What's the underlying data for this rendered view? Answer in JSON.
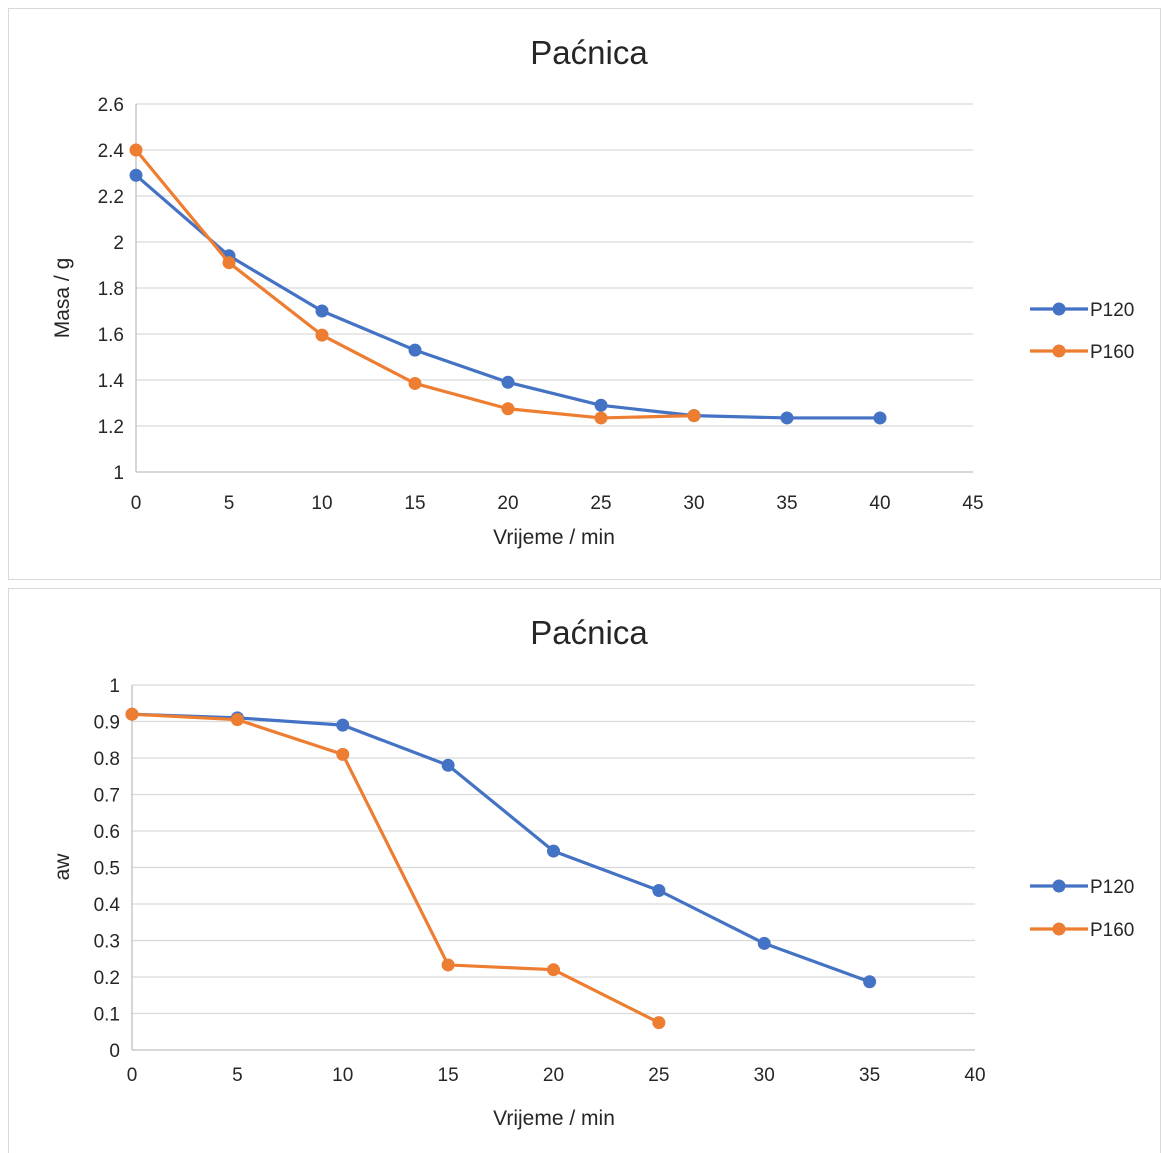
{
  "chart_data": [
    {
      "type": "line",
      "title": "Paćnica",
      "xlabel": "Vrijeme / min",
      "ylabel": "Masa / g",
      "xlim": [
        0,
        45
      ],
      "ylim": [
        1,
        2.6
      ],
      "x_ticks": [
        "0",
        "5",
        "10",
        "15",
        "20",
        "25",
        "30",
        "35",
        "40",
        "45"
      ],
      "y_ticks": [
        "1",
        "1.2",
        "1.4",
        "1.6",
        "1.8",
        "2",
        "2.2",
        "2.4",
        "2.6"
      ],
      "grid": "horizontal",
      "legend_position": "right",
      "series": [
        {
          "name": "P120",
          "color": "#4472c4",
          "x": [
            0,
            5,
            10,
            15,
            20,
            25,
            30,
            35,
            40
          ],
          "y": [
            2.29,
            1.94,
            1.7,
            1.53,
            1.39,
            1.29,
            1.245,
            1.235,
            1.235
          ]
        },
        {
          "name": "P160",
          "color": "#ed7d31",
          "x": [
            0,
            5,
            10,
            15,
            20,
            25,
            30
          ],
          "y": [
            2.4,
            1.91,
            1.595,
            1.385,
            1.275,
            1.235,
            1.245
          ]
        }
      ]
    },
    {
      "type": "line",
      "title": "Paćnica",
      "xlabel": "Vrijeme / min",
      "ylabel": "aw",
      "xlim": [
        0,
        40
      ],
      "ylim": [
        0,
        1
      ],
      "x_ticks": [
        "0",
        "5",
        "10",
        "15",
        "20",
        "25",
        "30",
        "35",
        "40"
      ],
      "y_ticks": [
        "0",
        "0.1",
        "0.2",
        "0.3",
        "0.4",
        "0.5",
        "0.6",
        "0.7",
        "0.8",
        "0.9",
        "1"
      ],
      "grid": "horizontal",
      "legend_position": "right",
      "series": [
        {
          "name": "P120",
          "color": "#4472c4",
          "x": [
            0,
            5,
            10,
            15,
            20,
            25,
            30,
            35
          ],
          "y": [
            0.92,
            0.91,
            0.89,
            0.78,
            0.545,
            0.437,
            0.292,
            0.187
          ]
        },
        {
          "name": "P160",
          "color": "#ed7d31",
          "x": [
            0,
            5,
            10,
            15,
            20,
            25
          ],
          "y": [
            0.92,
            0.905,
            0.81,
            0.233,
            0.22,
            0.075
          ]
        }
      ]
    }
  ]
}
